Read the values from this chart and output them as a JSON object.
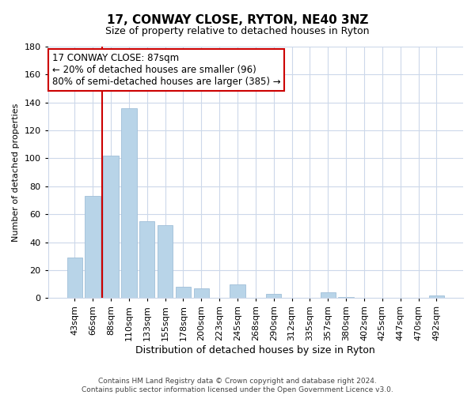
{
  "title": "17, CONWAY CLOSE, RYTON, NE40 3NZ",
  "subtitle": "Size of property relative to detached houses in Ryton",
  "xlabel": "Distribution of detached houses by size in Ryton",
  "ylabel": "Number of detached properties",
  "bar_labels": [
    "43sqm",
    "66sqm",
    "88sqm",
    "110sqm",
    "133sqm",
    "155sqm",
    "178sqm",
    "200sqm",
    "223sqm",
    "245sqm",
    "268sqm",
    "290sqm",
    "312sqm",
    "335sqm",
    "357sqm",
    "380sqm",
    "402sqm",
    "425sqm",
    "447sqm",
    "470sqm",
    "492sqm"
  ],
  "bar_values": [
    29,
    73,
    102,
    136,
    55,
    52,
    8,
    7,
    0,
    10,
    0,
    3,
    0,
    0,
    4,
    1,
    0,
    0,
    0,
    0,
    2
  ],
  "bar_color": "#b8d4e8",
  "bar_edge_color": "#a0bfd8",
  "vline_x": 1.5,
  "vline_color": "#cc0000",
  "ylim": [
    0,
    180
  ],
  "yticks": [
    0,
    20,
    40,
    60,
    80,
    100,
    120,
    140,
    160,
    180
  ],
  "annotation_title": "17 CONWAY CLOSE: 87sqm",
  "annotation_line1": "← 20% of detached houses are smaller (96)",
  "annotation_line2": "80% of semi-detached houses are larger (385) →",
  "annotation_box_color": "#ffffff",
  "annotation_box_edge": "#cc0000",
  "footer1": "Contains HM Land Registry data © Crown copyright and database right 2024.",
  "footer2": "Contains public sector information licensed under the Open Government Licence v3.0.",
  "background_color": "#ffffff",
  "grid_color": "#ccd8ea",
  "title_fontsize": 11,
  "subtitle_fontsize": 9,
  "xlabel_fontsize": 9,
  "ylabel_fontsize": 8,
  "tick_fontsize": 8,
  "annot_fontsize": 8.5,
  "footer_fontsize": 6.5
}
